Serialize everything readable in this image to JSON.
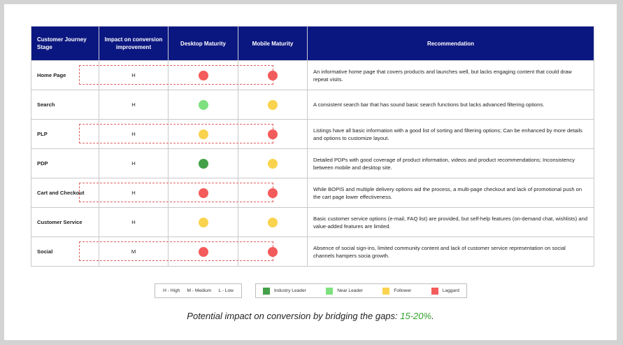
{
  "table": {
    "headers": {
      "stage": "Customer Journey Stage",
      "impact": "Impact on conversion improvement",
      "desktop": "Desktop Maturity",
      "mobile": "Mobile Maturity",
      "recommendation": "Recommendation"
    },
    "rows": [
      {
        "stage": "Home Page",
        "impact": "H",
        "desktop": "Laggard",
        "mobile": "Laggard",
        "recommendation": "An informative home page that covers products and launches well, but lacks engaging content that could draw repeat visits."
      },
      {
        "stage": "Search",
        "impact": "H",
        "desktop": "Near Leader",
        "mobile": "Follower",
        "recommendation": "A  consistent search bar that has sound basic search functions but lacks advanced filtering options."
      },
      {
        "stage": "PLP",
        "impact": "H",
        "desktop": "Follower",
        "mobile": "Laggard",
        "recommendation": "Listings have all basic information with a good list of sorting and filtering options; Can be enhanced by more details and options to customize layout."
      },
      {
        "stage": "PDP",
        "impact": "H",
        "desktop": "Industry Leader",
        "mobile": "Follower",
        "recommendation": "Detailed PDPs with good coverage of product information, videos and product recommendations; Inconsistency between mobile and desktop site."
      },
      {
        "stage": "Cart and Checkout",
        "impact": "H",
        "desktop": "Laggard",
        "mobile": "Laggard",
        "recommendation": "While BOPIS and multiple delivery options aid the process, a multi-page checkout and lack of promotional push on the cart page lower effectiveness."
      },
      {
        "stage": "Customer Service",
        "impact": "H",
        "desktop": "Follower",
        "mobile": "Follower",
        "recommendation": "Basic customer service options (e-mail, FAQ list) are provided, but self-help features (on-demand chat, wishlists) and value-added features are limited."
      },
      {
        "stage": "Social",
        "impact": "M",
        "desktop": "Laggard",
        "mobile": "Laggard",
        "recommendation": "Absence of social sign-ins, limited community content and lack of customer service representation on social channels hampers socia growth."
      }
    ]
  },
  "impact_legend": {
    "high": "H - High",
    "medium": "M - Medium",
    "low": "L - Low"
  },
  "maturity_legend": [
    {
      "label": "Industry Leader",
      "color": "#43a047"
    },
    {
      "label": "Near Leader",
      "color": "#7ee07e"
    },
    {
      "label": "Follower",
      "color": "#f9d34e"
    },
    {
      "label": "Laggard",
      "color": "#f45b5b"
    }
  ],
  "colors": {
    "header_bg": "#0b1780",
    "Industry Leader": "#43a047",
    "Near Leader": "#7ee07e",
    "Follower": "#f9d34e",
    "Laggard": "#f45b5b",
    "highlight": "#33a02c"
  },
  "footer": {
    "text": "Potential impact on conversion by bridging the gaps: ",
    "value": "15-20%",
    "suffix": "."
  }
}
